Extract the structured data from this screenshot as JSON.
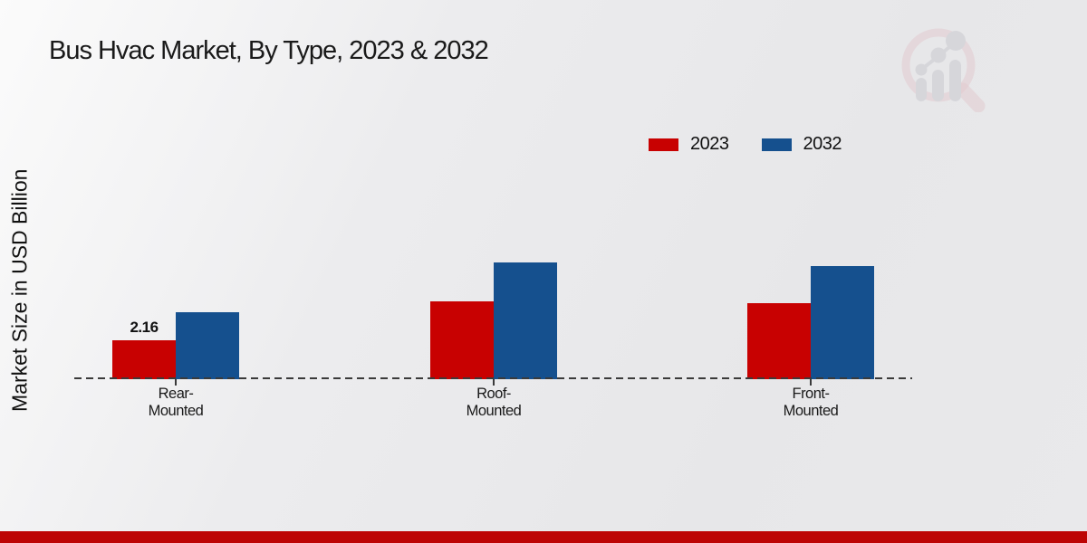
{
  "chart_data": {
    "type": "bar",
    "title": "Bus Hvac Market, By Type, 2023 & 2032",
    "ylabel": "Market Size in USD Billion",
    "xlabel": "",
    "categories": [
      "Rear-Mounted",
      "Roof-Mounted",
      "Front-Mounted"
    ],
    "tick_labels": [
      "Rear-\nMounted",
      "Roof-\nMounted",
      "Front-\nMounted"
    ],
    "series": [
      {
        "name": "2023",
        "color": "#c80101",
        "values": [
          2.16,
          4.3,
          4.2
        ],
        "data_labels": [
          "2.16",
          "",
          ""
        ]
      },
      {
        "name": "2032",
        "color": "#15508e",
        "values": [
          3.7,
          6.5,
          6.3
        ],
        "data_labels": [
          "",
          "",
          ""
        ]
      }
    ],
    "ylim": [
      0,
      8.5
    ],
    "grid": false,
    "legend_position": "top-right",
    "baseline_style": "dashed",
    "axis_color": "#3a3a3a",
    "labeled_points_note": "2.16"
  },
  "footer": {
    "color": "#bd0505"
  },
  "logo": {
    "name": "market-research-future-watermark",
    "ring_color": "#dfb3ba",
    "bars_color": "#c9c9cf"
  }
}
